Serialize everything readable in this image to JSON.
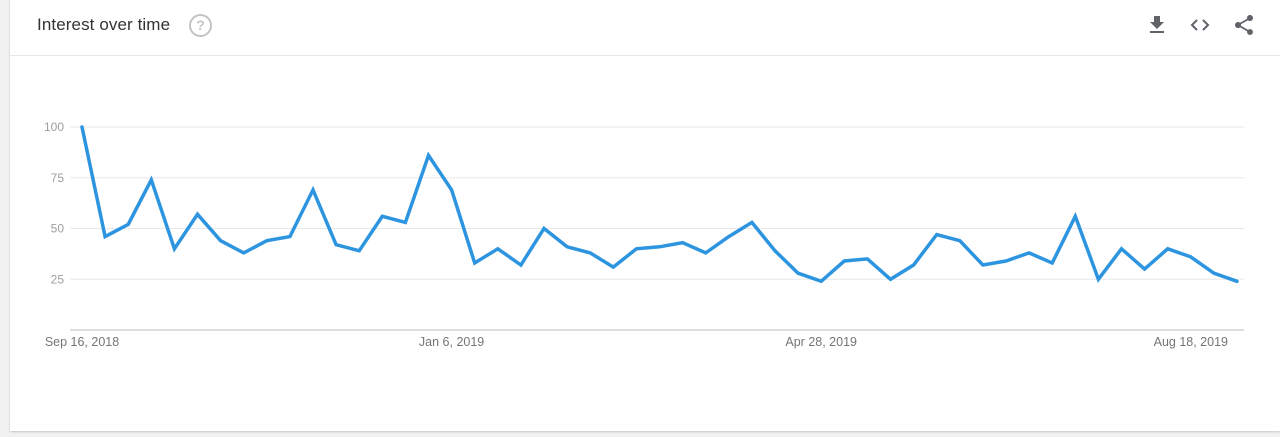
{
  "header": {
    "title": "Interest over time",
    "help_glyph": "?"
  },
  "toolbar": {
    "icons": [
      "download-icon",
      "embed-code-icon",
      "share-icon"
    ]
  },
  "colors": {
    "line": "#2d95e0",
    "grid": "#e8e8e8",
    "baseline": "#bdbdbd"
  },
  "chart_data": {
    "type": "line",
    "title": "Interest over time",
    "ylim": [
      0,
      100
    ],
    "yticks": [
      25,
      50,
      75,
      100
    ],
    "xticks": [
      "Sep 16, 2018",
      "Jan 6, 2019",
      "Apr 28, 2019",
      "Aug 18, 2019"
    ],
    "xtick_indices": [
      0,
      16,
      32,
      48
    ],
    "grid": true,
    "legend": "none",
    "series": [
      {
        "values": [
          100,
          46,
          52,
          74,
          40,
          57,
          44,
          38,
          44,
          46,
          69,
          42,
          39,
          56,
          53,
          86,
          69,
          33,
          40,
          32,
          50,
          41,
          38,
          31,
          40,
          41,
          43,
          38,
          46,
          53,
          39,
          28,
          24,
          34,
          35,
          25,
          32,
          47,
          44,
          32,
          34,
          38,
          33,
          56,
          25,
          40,
          30,
          40,
          36,
          28,
          24
        ]
      }
    ]
  }
}
